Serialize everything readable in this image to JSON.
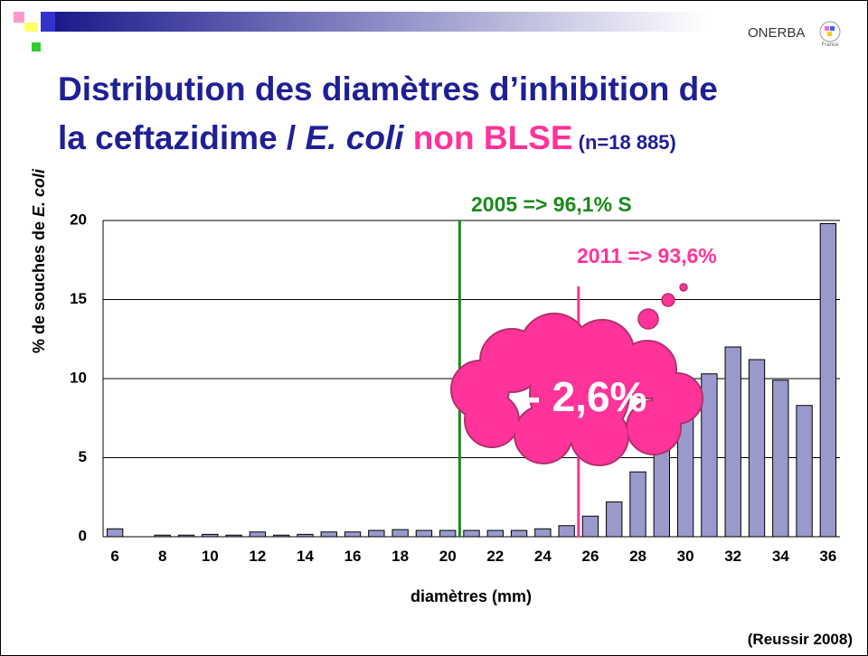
{
  "header": {
    "logo": "ONERBA",
    "logo_sub": "France",
    "title_line1": "Distribution des diamètres d’inhibition de",
    "title_line2": [
      "la ceftazidime / ",
      "E. coli",
      " non BLSE",
      " (n=18 885)"
    ]
  },
  "chart_data": {
    "type": "bar",
    "x": [
      6,
      7,
      8,
      9,
      10,
      11,
      12,
      13,
      14,
      15,
      16,
      17,
      18,
      19,
      20,
      21,
      22,
      23,
      24,
      25,
      26,
      27,
      28,
      29,
      30,
      31,
      32,
      33,
      34,
      35,
      36
    ],
    "values": [
      0.5,
      0,
      0.1,
      0.1,
      0.15,
      0.1,
      0.3,
      0.1,
      0.15,
      0.3,
      0.3,
      0.4,
      0.45,
      0.4,
      0.4,
      0.4,
      0.4,
      0.4,
      0.5,
      0.7,
      1.3,
      2.2,
      4.1,
      6.0,
      8.5,
      10.3,
      12.0,
      11.2,
      9.9,
      8.3,
      19.8
    ],
    "color": "#9999cc",
    "xlim": [
      5.5,
      36.5
    ],
    "xticks": [
      6,
      8,
      10,
      12,
      14,
      16,
      18,
      20,
      22,
      24,
      26,
      28,
      30,
      32,
      34,
      36
    ],
    "ylim": [
      0,
      20
    ],
    "yticks": [
      0,
      5,
      10,
      15,
      20
    ],
    "grid": true,
    "x_label": "diamètres (mm)",
    "y_label": [
      "% de souches de ",
      "E. coli"
    ],
    "markers": [
      {
        "x": 20.5,
        "color": "#1a8a1a",
        "label": "2005 => 96,1% S"
      },
      {
        "x": 25.5,
        "color": "#ff3399",
        "label": "2011 => 93,6%"
      }
    ],
    "annotation": "- 2,6%",
    "annotation_color": "#ff3399"
  },
  "footer": {
    "source": "(Reussir 2008)"
  }
}
